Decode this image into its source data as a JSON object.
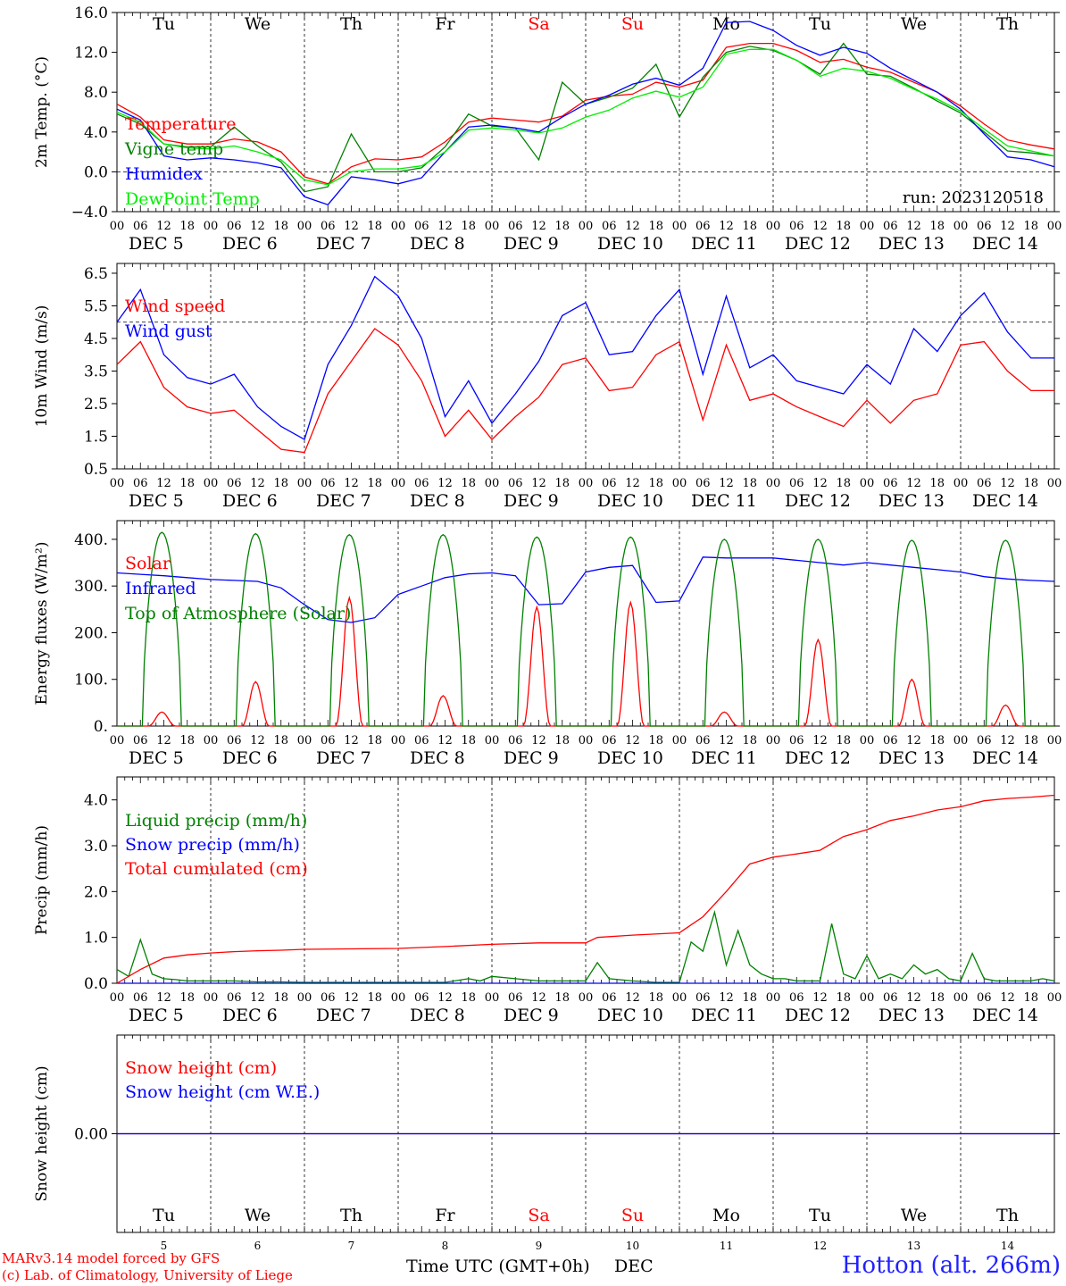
{
  "run_label": "run: 2023120518",
  "footer": {
    "model_line": "MARv3.14 model forced by GFS",
    "credit_line": "(c) Lab. of Climatology, University of Liege",
    "station": "Hotton (alt. 266m)",
    "xaxis_title": "Time UTC (GMT+0h)",
    "xaxis_title_month": "DEC"
  },
  "colors": {
    "red": "#ff0000",
    "green": "#008000",
    "blue": "#0000ff",
    "lightgreen": "#00ee00",
    "purple": "#800080"
  },
  "days": [
    {
      "abbr": "Tu",
      "weekend": false,
      "num": "5",
      "label": "DEC  5"
    },
    {
      "abbr": "We",
      "weekend": false,
      "num": "6",
      "label": "DEC  6"
    },
    {
      "abbr": "Th",
      "weekend": false,
      "num": "7",
      "label": "DEC  7"
    },
    {
      "abbr": "Fr",
      "weekend": false,
      "num": "8",
      "label": "DEC  8"
    },
    {
      "abbr": "Sa",
      "weekend": true,
      "num": "9",
      "label": "DEC  9"
    },
    {
      "abbr": "Su",
      "weekend": true,
      "num": "10",
      "label": "DEC 10"
    },
    {
      "abbr": "Mo",
      "weekend": false,
      "num": "11",
      "label": "DEC 11"
    },
    {
      "abbr": "Tu",
      "weekend": false,
      "num": "12",
      "label": "DEC 12"
    },
    {
      "abbr": "We",
      "weekend": false,
      "num": "13",
      "label": "DEC 13"
    },
    {
      "abbr": "Th",
      "weekend": false,
      "num": "14",
      "label": "DEC 14"
    }
  ],
  "hour_labels": [
    "00",
    "06",
    "12",
    "18"
  ],
  "chart_data": [
    {
      "id": "temp",
      "type": "line",
      "ylabel": "2m Temp. (°C)",
      "ylim": [
        -4,
        16
      ],
      "yticks": [
        -4,
        0,
        4,
        8,
        12,
        16
      ],
      "ytick_labels": [
        "−4.0",
        "0.0",
        "4.0",
        "8.0",
        "12.0",
        "16.0"
      ],
      "reference_line": 0,
      "x_unit": "hours since DEC 5 00 UTC",
      "legend": [
        "Temperature",
        "Vigne temp",
        "Humidex",
        "DewPoint Temp"
      ],
      "series": [
        {
          "name": "Temperature",
          "color": "red",
          "x": [
            0,
            6,
            12,
            18,
            24,
            30,
            36,
            42,
            48,
            54,
            60,
            66,
            72,
            78,
            84,
            90,
            96,
            102,
            108,
            114,
            120,
            126,
            132,
            138,
            144,
            150,
            156,
            162,
            168,
            174,
            180,
            186,
            192,
            198,
            204,
            210,
            216,
            222,
            228,
            234,
            240
          ],
          "y": [
            6.8,
            5.5,
            3.2,
            2.8,
            2.8,
            3.3,
            3.0,
            2.0,
            -0.5,
            -1.2,
            0.5,
            1.3,
            1.2,
            1.5,
            3.0,
            5.0,
            5.4,
            5.2,
            5.0,
            5.6,
            7.2,
            7.6,
            7.8,
            9.0,
            8.5,
            9.2,
            12.5,
            12.9,
            12.9,
            12.2,
            11.0,
            11.3,
            10.5,
            10.0,
            9.0,
            8.0,
            6.6,
            4.8,
            3.2,
            2.7,
            2.3
          ]
        },
        {
          "name": "Vigne temp",
          "color": "green",
          "x": [
            0,
            6,
            12,
            18,
            24,
            30,
            36,
            42,
            48,
            54,
            60,
            66,
            72,
            78,
            84,
            90,
            96,
            102,
            108,
            114,
            120,
            126,
            132,
            138,
            144,
            150,
            156,
            162,
            168,
            174,
            180,
            186,
            192,
            198,
            204,
            210,
            216,
            222,
            228,
            234,
            240
          ],
          "y": [
            5.8,
            4.8,
            2.8,
            2.5,
            2.5,
            4.5,
            2.6,
            1.0,
            -2.0,
            -1.5,
            3.8,
            0.0,
            0.0,
            0.4,
            2.5,
            5.8,
            4.6,
            4.4,
            1.2,
            9.0,
            6.8,
            7.5,
            8.4,
            10.8,
            5.5,
            9.5,
            12.0,
            12.6,
            12.2,
            11.2,
            9.8,
            12.9,
            9.8,
            9.6,
            8.4,
            7.1,
            5.9,
            4.0,
            2.1,
            1.9,
            1.6
          ]
        },
        {
          "name": "Humidex",
          "color": "blue",
          "x": [
            0,
            6,
            12,
            18,
            24,
            30,
            36,
            42,
            48,
            54,
            60,
            66,
            72,
            78,
            84,
            90,
            96,
            102,
            108,
            114,
            120,
            126,
            132,
            138,
            144,
            150,
            156,
            162,
            168,
            174,
            180,
            186,
            192,
            198,
            204,
            210,
            216,
            222,
            228,
            234,
            240
          ],
          "y": [
            6.3,
            5.2,
            1.6,
            1.2,
            1.4,
            1.2,
            0.9,
            0.4,
            -2.5,
            -3.3,
            -0.5,
            -0.8,
            -1.2,
            -0.6,
            2.0,
            4.5,
            4.7,
            4.4,
            4.0,
            5.5,
            6.8,
            7.7,
            8.8,
            9.4,
            8.7,
            10.4,
            15.0,
            15.1,
            14.2,
            12.7,
            11.7,
            12.5,
            11.9,
            10.4,
            9.2,
            8.0,
            6.3,
            3.8,
            1.5,
            1.2,
            0.5
          ]
        },
        {
          "name": "DewPoint Temp",
          "color": "lightgreen",
          "x": [
            0,
            6,
            12,
            18,
            24,
            30,
            36,
            42,
            48,
            54,
            60,
            66,
            72,
            78,
            84,
            90,
            96,
            102,
            108,
            114,
            120,
            126,
            132,
            138,
            144,
            150,
            156,
            162,
            168,
            174,
            180,
            186,
            192,
            198,
            204,
            210,
            216,
            222,
            228,
            234,
            240
          ],
          "y": [
            6.0,
            5.0,
            2.8,
            2.4,
            2.3,
            2.6,
            2.0,
            1.2,
            -0.8,
            -1.3,
            0.0,
            0.3,
            0.3,
            0.6,
            2.0,
            4.2,
            4.4,
            4.2,
            3.9,
            4.4,
            5.5,
            6.2,
            7.4,
            8.1,
            7.5,
            8.5,
            11.8,
            12.3,
            12.3,
            11.2,
            9.6,
            10.4,
            10.1,
            9.4,
            8.3,
            7.3,
            6.1,
            4.3,
            2.6,
            2.1,
            1.6
          ]
        }
      ]
    },
    {
      "id": "wind",
      "type": "line",
      "ylabel": "10m Wind (m/s)",
      "ylim": [
        0.5,
        6.8
      ],
      "yticks": [
        0.5,
        1.5,
        2.5,
        3.5,
        4.5,
        5.5,
        6.5
      ],
      "ytick_labels": [
        "0.5",
        "1.5",
        "2.5",
        "3.5",
        "4.5",
        "5.5",
        "6.5"
      ],
      "reference_line": 5.0,
      "legend": [
        "Wind speed",
        "Wind gust"
      ],
      "series": [
        {
          "name": "Wind speed",
          "color": "red",
          "x": [
            0,
            6,
            12,
            18,
            24,
            30,
            36,
            42,
            48,
            54,
            60,
            66,
            72,
            78,
            84,
            90,
            96,
            102,
            108,
            114,
            120,
            126,
            132,
            138,
            144,
            150,
            156,
            162,
            168,
            174,
            180,
            186,
            192,
            198,
            204,
            210,
            216,
            222,
            228,
            234,
            240
          ],
          "y": [
            3.7,
            4.4,
            3.0,
            2.4,
            2.2,
            2.3,
            1.7,
            1.1,
            1.0,
            2.8,
            3.8,
            4.8,
            4.3,
            3.2,
            1.5,
            2.3,
            1.4,
            2.1,
            2.7,
            3.7,
            3.9,
            2.9,
            3.0,
            4.0,
            4.4,
            2.0,
            4.3,
            2.6,
            2.8,
            2.4,
            2.1,
            1.8,
            2.6,
            1.9,
            2.6,
            2.8,
            4.3,
            4.4,
            3.5,
            2.9,
            2.9
          ]
        },
        {
          "name": "Wind gust",
          "color": "blue",
          "x": [
            0,
            6,
            12,
            18,
            24,
            30,
            36,
            42,
            48,
            54,
            60,
            66,
            72,
            78,
            84,
            90,
            96,
            102,
            108,
            114,
            120,
            126,
            132,
            138,
            144,
            150,
            156,
            162,
            168,
            174,
            180,
            186,
            192,
            198,
            204,
            210,
            216,
            222,
            228,
            234,
            240
          ],
          "y": [
            5.0,
            6.0,
            4.0,
            3.3,
            3.1,
            3.4,
            2.4,
            1.8,
            1.4,
            3.7,
            4.9,
            6.4,
            5.8,
            4.5,
            2.1,
            3.2,
            1.9,
            2.8,
            3.8,
            5.2,
            5.6,
            4.0,
            4.1,
            5.2,
            6.0,
            3.4,
            5.8,
            3.6,
            4.0,
            3.2,
            3.0,
            2.8,
            3.7,
            3.1,
            4.8,
            4.1,
            5.2,
            5.9,
            4.7,
            3.9,
            3.9
          ]
        }
      ]
    },
    {
      "id": "flux",
      "type": "line",
      "ylabel": "Energy fluxes (W/m²)",
      "ylim": [
        0,
        440
      ],
      "yticks": [
        0,
        100,
        200,
        300,
        400
      ],
      "ytick_labels": [
        "0.",
        "100.",
        "200.",
        "300.",
        "400."
      ],
      "legend": [
        "Solar",
        "Infrared",
        "Top of Atmosphere (Solar)"
      ],
      "series": [
        {
          "name": "Solar",
          "color": "red",
          "daily_peaks": [
            30,
            95,
            275,
            65,
            255,
            265,
            30,
            185,
            100,
            45
          ]
        },
        {
          "name": "Infrared",
          "color": "blue",
          "x": [
            0,
            6,
            12,
            18,
            24,
            30,
            36,
            42,
            48,
            54,
            60,
            66,
            72,
            78,
            84,
            90,
            96,
            102,
            108,
            114,
            120,
            126,
            132,
            138,
            144,
            150,
            156,
            162,
            168,
            174,
            180,
            186,
            192,
            198,
            204,
            210,
            216,
            222,
            228,
            234,
            240
          ],
          "y": [
            328,
            325,
            322,
            318,
            314,
            312,
            310,
            296,
            260,
            228,
            222,
            232,
            282,
            300,
            318,
            326,
            328,
            322,
            260,
            262,
            330,
            340,
            344,
            265,
            268,
            362,
            360,
            360,
            360,
            355,
            350,
            345,
            350,
            345,
            340,
            335,
            330,
            320,
            315,
            312,
            310
          ]
        },
        {
          "name": "Top of Atmosphere (Solar)",
          "color": "green",
          "daily_peaks": [
            415,
            412,
            410,
            410,
            405,
            405,
            400,
            400,
            398,
            398
          ]
        }
      ]
    },
    {
      "id": "precip",
      "type": "line",
      "ylabel": "Precip (mm/h)",
      "ylim": [
        0,
        4.5
      ],
      "yticks": [
        0,
        1,
        2,
        3,
        4
      ],
      "ytick_labels": [
        "0.0",
        "1.0",
        "2.0",
        "3.0",
        "4.0"
      ],
      "legend": [
        "Liquid precip (mm/h)",
        "Snow precip (mm/h)",
        "Total cumulated (cm)"
      ],
      "series": [
        {
          "name": "Liquid precip (mm/h)",
          "color": "green",
          "x": [
            0,
            3,
            6,
            9,
            12,
            15,
            18,
            24,
            30,
            36,
            42,
            48,
            60,
            72,
            84,
            90,
            93,
            96,
            102,
            108,
            114,
            120,
            123,
            126,
            132,
            138,
            144,
            147,
            150,
            153,
            156,
            159,
            162,
            165,
            168,
            171,
            174,
            177,
            180,
            183,
            186,
            189,
            192,
            195,
            198,
            201,
            204,
            207,
            210,
            213,
            216,
            219,
            222,
            225,
            228,
            231,
            234,
            237,
            240
          ],
          "y": [
            0.3,
            0.15,
            0.95,
            0.2,
            0.1,
            0.08,
            0.05,
            0.05,
            0.05,
            0.03,
            0.03,
            0.02,
            0.02,
            0.02,
            0.02,
            0.1,
            0.05,
            0.15,
            0.1,
            0.05,
            0.05,
            0.05,
            0.45,
            0.1,
            0.05,
            0.02,
            0.02,
            0.9,
            0.7,
            1.55,
            0.4,
            1.15,
            0.4,
            0.2,
            0.1,
            0.1,
            0.05,
            0.05,
            0.05,
            1.3,
            0.2,
            0.1,
            0.6,
            0.1,
            0.2,
            0.1,
            0.4,
            0.2,
            0.3,
            0.1,
            0.05,
            0.65,
            0.1,
            0.05,
            0.05,
            0.05,
            0.05,
            0.1,
            0.05
          ]
        },
        {
          "name": "Snow precip (mm/h)",
          "color": "blue",
          "x": [
            0,
            240
          ],
          "y": [
            0,
            0
          ]
        },
        {
          "name": "Total cumulated (cm)",
          "color": "red",
          "x": [
            0,
            6,
            12,
            18,
            24,
            30,
            36,
            42,
            48,
            60,
            72,
            84,
            96,
            108,
            120,
            123,
            132,
            144,
            150,
            156,
            162,
            168,
            174,
            180,
            186,
            192,
            198,
            204,
            210,
            216,
            222,
            228,
            234,
            240
          ],
          "y": [
            0,
            0.3,
            0.55,
            0.62,
            0.66,
            0.69,
            0.71,
            0.72,
            0.74,
            0.75,
            0.76,
            0.8,
            0.85,
            0.88,
            0.88,
            1.0,
            1.05,
            1.1,
            1.45,
            2.0,
            2.6,
            2.75,
            2.82,
            2.9,
            3.2,
            3.35,
            3.55,
            3.65,
            3.78,
            3.85,
            3.98,
            4.03,
            4.06,
            4.1
          ]
        }
      ]
    },
    {
      "id": "snow",
      "type": "line",
      "ylabel": "Snow height (cm)",
      "ylim": [
        -1,
        1
      ],
      "yticks": [
        0
      ],
      "ytick_labels": [
        "0.00"
      ],
      "legend": [
        "Snow height (cm)",
        "Snow height (cm W.E.)"
      ],
      "series": [
        {
          "name": "Snow height (cm)",
          "color": "red",
          "x": [
            0,
            240
          ],
          "y": [
            0,
            0
          ]
        },
        {
          "name": "Snow height (cm W.E.)",
          "color": "blue",
          "x": [
            0,
            240
          ],
          "y": [
            0,
            0
          ]
        }
      ]
    }
  ]
}
